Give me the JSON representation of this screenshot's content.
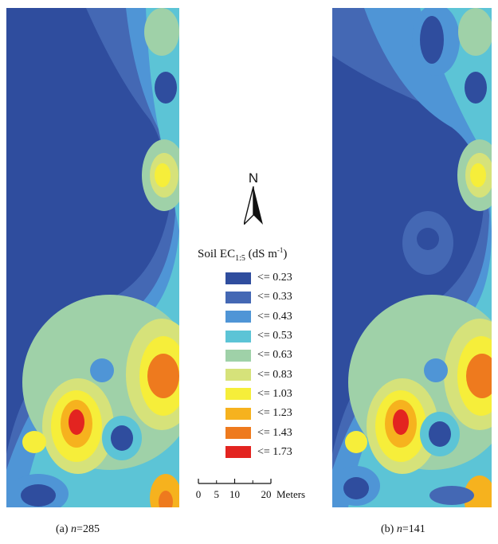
{
  "maps": [
    {
      "caption_prefix": "(a) ",
      "caption_var": "n",
      "caption_value": "=285"
    },
    {
      "caption_prefix": "(b) ",
      "caption_var": "n",
      "caption_value": "=141"
    }
  ],
  "north_arrow": {
    "label": "N"
  },
  "legend": {
    "title_main": "Soil EC",
    "title_sub": "1:5",
    "title_unit": " (dS m",
    "title_sup": "-1",
    "title_close": ")",
    "classes": [
      {
        "label": "<= 0.23",
        "color": "#2f4d9e"
      },
      {
        "label": "<= 0.33",
        "color": "#4468b4"
      },
      {
        "label": "<= 0.43",
        "color": "#4f95d6"
      },
      {
        "label": "<= 0.53",
        "color": "#5cc4d6"
      },
      {
        "label": "<= 0.63",
        "color": "#9fd1a8"
      },
      {
        "label": "<= 0.83",
        "color": "#d6e27a"
      },
      {
        "label": "<= 1.03",
        "color": "#f6ee3a"
      },
      {
        "label": "<= 1.23",
        "color": "#f6b21e"
      },
      {
        "label": "<= 1.43",
        "color": "#ee7a1e"
      },
      {
        "label": "<= 1.73",
        "color": "#e32420"
      }
    ]
  },
  "scale_bar": {
    "ticks": [
      "0",
      "5",
      "10",
      "20"
    ],
    "unit": "Meters"
  }
}
